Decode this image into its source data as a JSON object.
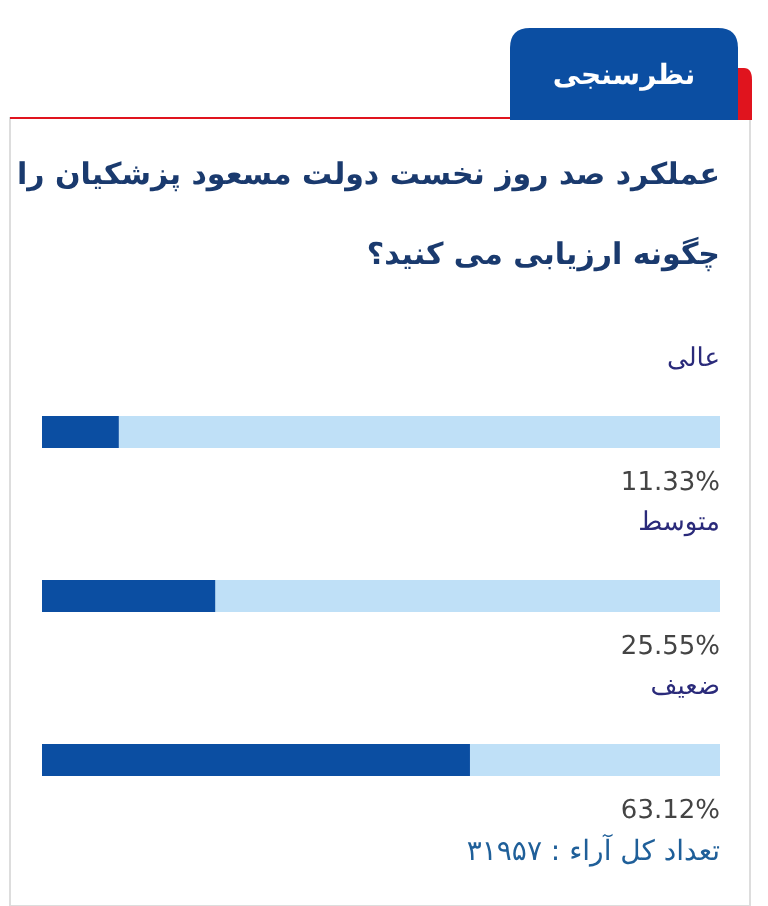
{
  "chart_data": {
    "type": "bar",
    "orientation": "horizontal",
    "title": "عملکرد صد روز نخست دولت مسعود پزشکیان را چگونه ارزیابی می کنید؟",
    "subtitle": "نظرسنجی",
    "categories": [
      "عالی",
      "متوسط",
      "ضعیف"
    ],
    "values": [
      11.33,
      25.55,
      63.12
    ],
    "value_labels": [
      "11.33%",
      "25.55%",
      "63.12%"
    ],
    "color": "#0b4ea2",
    "xlim": [
      0,
      100
    ],
    "annotations": [
      "تعداد کل آراء : ۳۱۹۵۷"
    ]
  }
}
